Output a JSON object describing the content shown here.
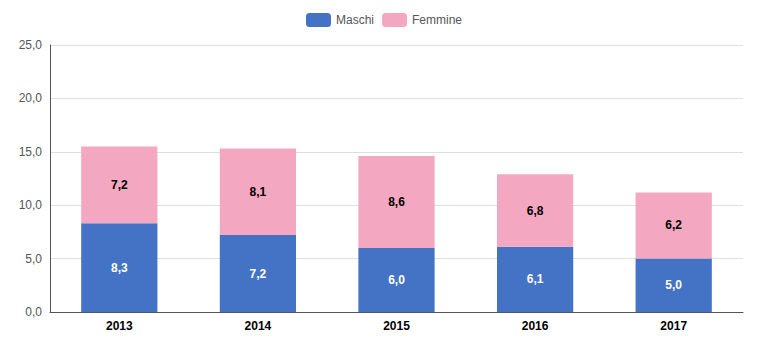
{
  "chart_data": {
    "type": "bar",
    "stacked": true,
    "categories": [
      "2013",
      "2014",
      "2015",
      "2016",
      "2017"
    ],
    "series": [
      {
        "name": "Maschi",
        "color": "#4472C4",
        "values": [
          8.3,
          7.2,
          6.0,
          6.1,
          5.0
        ],
        "value_labels": [
          "8,3",
          "7,2",
          "6,0",
          "6,1",
          "5,0"
        ]
      },
      {
        "name": "Femmine",
        "color": "#F4A7C0",
        "values": [
          7.2,
          8.1,
          8.6,
          6.8,
          6.2
        ],
        "value_labels": [
          "7,2",
          "8,1",
          "8,6",
          "6,8",
          "6,2"
        ]
      }
    ],
    "ylim": [
      0,
      25
    ],
    "yticks": [
      {
        "value": 0.0,
        "label": "0,0"
      },
      {
        "value": 5.0,
        "label": "5,0"
      },
      {
        "value": 10.0,
        "label": "10,0"
      },
      {
        "value": 15.0,
        "label": "15,0"
      },
      {
        "value": 20.0,
        "label": "20,0"
      },
      {
        "value": 25.0,
        "label": "25,0"
      }
    ],
    "grid": true,
    "legend": "top",
    "data_labels": true
  }
}
